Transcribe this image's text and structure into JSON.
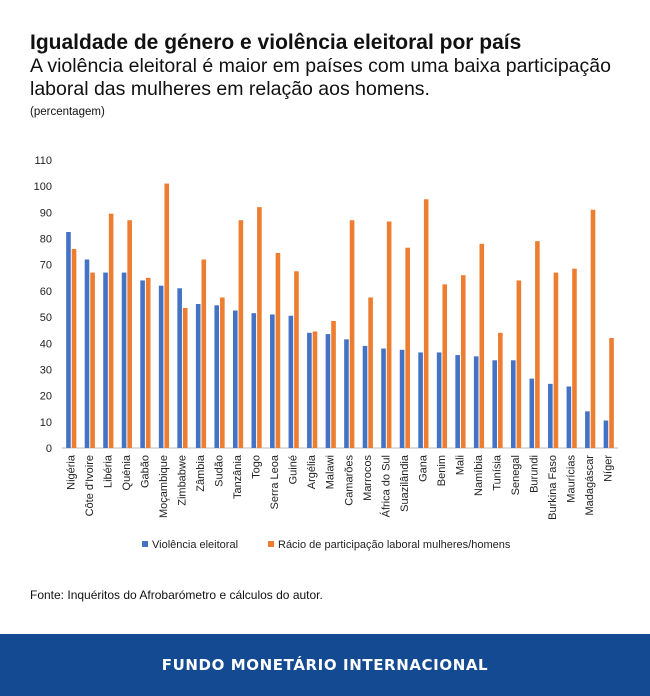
{
  "chart_data": {
    "type": "bar",
    "title": "Igualdade de género e violência eleitoral por país",
    "subtitle": "A violência eleitoral é maior em países com uma baixa participação laboral das mulheres em relação aos homens.",
    "ylabel": "(percentagem)",
    "xlabel": "",
    "ylim": [
      0,
      110
    ],
    "yticks": [
      0,
      10,
      20,
      30,
      40,
      50,
      60,
      70,
      80,
      90,
      100,
      110
    ],
    "grid": false,
    "legend_position": "bottom",
    "categories": [
      "Nigéria",
      "Côte d'Ivoire",
      "Libéria",
      "Quénia",
      "Gabão",
      "Moçambique",
      "Zimbabwe",
      "Zâmbia",
      "Sudão",
      "Tanzânia",
      "Togo",
      "Serra Leoa",
      "Guiné",
      "Argélia",
      "Malawi",
      "Camarões",
      "Marrocos",
      "África do Sul",
      "Suazilândia",
      "Gana",
      "Benim",
      "Mali",
      "Namíbia",
      "Tunísia",
      "Senegal",
      "Burundi",
      "Burkina Faso",
      "Maurícias",
      "Madagáscar",
      "Níger"
    ],
    "series": [
      {
        "name": "Violência eleitoral",
        "color": "#4472c4",
        "values": [
          82.5,
          72,
          67,
          67,
          64,
          62,
          61,
          55,
          54.5,
          52.5,
          51.5,
          51,
          50.5,
          44,
          43.5,
          41.5,
          39,
          38,
          37.5,
          36.5,
          36.5,
          35.5,
          35,
          33.5,
          33.5,
          26.5,
          24.5,
          23.5,
          14,
          10.5
        ]
      },
      {
        "name": "Rácio de participação laboral mulheres/homens",
        "color": "#ed7d31",
        "values": [
          76,
          67,
          89.5,
          87,
          65,
          101,
          53.5,
          72,
          57.5,
          87,
          92,
          74.5,
          67.5,
          44.5,
          48.5,
          87,
          57.5,
          86.5,
          76.5,
          95,
          62.5,
          66,
          78,
          44,
          64,
          79,
          67,
          68.5,
          91,
          42
        ]
      }
    ]
  },
  "source": "Fonte: Inquéritos do Afrobarómetro e cálculos do autor.",
  "footer": "FUNDO MONETÁRIO INTERNACIONAL"
}
